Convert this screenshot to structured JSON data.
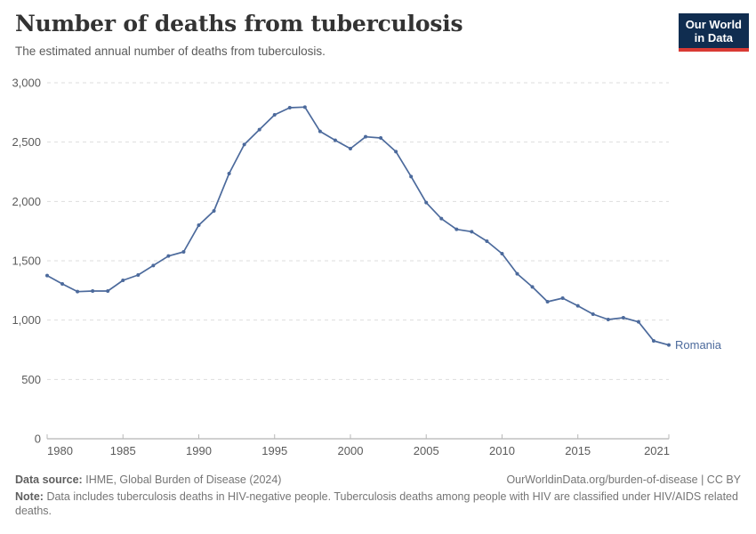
{
  "header": {
    "title": "Number of deaths from tuberculosis",
    "subtitle": "The estimated annual number of deaths from tuberculosis.",
    "logo_line1": "Our World",
    "logo_line2": "in Data"
  },
  "colors": {
    "line": "#4C6A9C",
    "grid": "#dddddd",
    "axis": "#a1a1a1",
    "tick": "#b8b8b8",
    "tick_label": "#5b5b5b",
    "logo_navy": "#102d50",
    "logo_red": "#d93a34"
  },
  "chart_data": {
    "type": "line",
    "title": "Number of deaths from tuberculosis",
    "xlabel": "",
    "ylabel": "",
    "ylim": [
      0,
      3000
    ],
    "grid": "horizontal-dashed",
    "legend_position": "line-end-label",
    "x": [
      1980,
      1981,
      1982,
      1983,
      1984,
      1985,
      1986,
      1987,
      1988,
      1989,
      1990,
      1991,
      1992,
      1993,
      1994,
      1995,
      1996,
      1997,
      1998,
      1999,
      2000,
      2001,
      2002,
      2003,
      2004,
      2005,
      2006,
      2007,
      2008,
      2009,
      2010,
      2011,
      2012,
      2013,
      2014,
      2015,
      2016,
      2017,
      2018,
      2019,
      2020,
      2021
    ],
    "series": [
      {
        "name": "Romania",
        "color": "#4C6A9C",
        "values": [
          1375,
          1305,
          1240,
          1245,
          1245,
          1335,
          1380,
          1460,
          1540,
          1575,
          1800,
          1920,
          2235,
          2480,
          2605,
          2730,
          2790,
          2795,
          2590,
          2515,
          2445,
          2545,
          2535,
          2420,
          2210,
          1990,
          1855,
          1765,
          1745,
          1665,
          1560,
          1390,
          1280,
          1155,
          1185,
          1120,
          1050,
          1005,
          1020,
          985,
          825,
          790
        ]
      }
    ],
    "yticks": [
      0,
      500,
      1000,
      1500,
      2000,
      2500,
      3000
    ],
    "ytick_labels": [
      "0",
      "500",
      "1,000",
      "1,500",
      "2,000",
      "2,500",
      "3,000"
    ],
    "xticks": [
      1980,
      1985,
      1990,
      1995,
      2000,
      2005,
      2010,
      2015,
      2021
    ],
    "xtick_labels": [
      "1980",
      "1985",
      "1990",
      "1995",
      "2000",
      "2005",
      "2010",
      "2015",
      "2021"
    ]
  },
  "footer": {
    "datasource_label": "Data source:",
    "datasource_value": "IHME, Global Burden of Disease (2024)",
    "link": "OurWorldinData.org/burden-of-disease | CC BY",
    "note_label": "Note:",
    "note_value": "Data includes tuberculosis deaths in HIV-negative people. Tuberculosis deaths among people with HIV are classified under HIV/AIDS related deaths."
  }
}
